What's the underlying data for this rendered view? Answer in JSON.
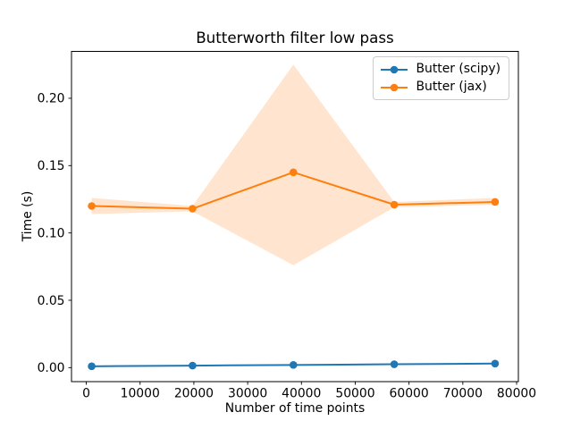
{
  "chart_data": {
    "type": "line",
    "title": "Butterworth filter low pass",
    "xlabel": "Number of time points",
    "ylabel": "Time (s)",
    "x": [
      1000,
      19750,
      38500,
      57250,
      76000
    ],
    "series": [
      {
        "name": "Butter (scipy)",
        "color": "#1f77b4",
        "values": [
          0.001,
          0.0015,
          0.002,
          0.0025,
          0.003
        ]
      },
      {
        "name": "Butter (jax)",
        "color": "#ff7f0e",
        "values": [
          0.12,
          0.118,
          0.145,
          0.121,
          0.123
        ],
        "band_low": [
          0.114,
          0.116,
          0.076,
          0.119,
          0.121
        ],
        "band_high": [
          0.126,
          0.12,
          0.225,
          0.123,
          0.126
        ],
        "band_opacity": 0.2
      }
    ],
    "xticks": {
      "values": [
        0,
        10000,
        20000,
        30000,
        40000,
        50000,
        60000,
        70000,
        80000
      ],
      "labels": [
        "0",
        "10000",
        "20000",
        "30000",
        "40000",
        "50000",
        "60000",
        "70000",
        "80000"
      ]
    },
    "yticks": {
      "values": [
        0.0,
        0.05,
        0.1,
        0.15,
        0.2
      ],
      "labels": [
        "0.00",
        "0.05",
        "0.10",
        "0.15",
        "0.20"
      ]
    },
    "xlim": [
      -2750,
      80330
    ],
    "ylim": [
      -0.0104,
      0.2348
    ],
    "grid": false,
    "legend_position": "upper right"
  }
}
